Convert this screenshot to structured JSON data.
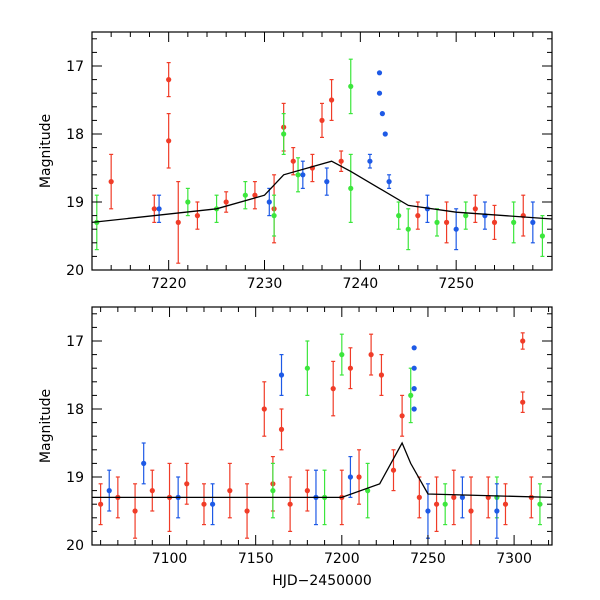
{
  "colors": {
    "red": "#f03c28",
    "green": "#3ce63c",
    "blue": "#1e5ae6",
    "model": "#000000"
  },
  "chart_data": [
    {
      "type": "scatter",
      "panel": "top",
      "title": "",
      "xlabel": "",
      "ylabel": "Magnitude",
      "xlim": [
        7212,
        7260
      ],
      "ylim": [
        20,
        16.5
      ],
      "yticks": [
        17,
        18,
        19,
        20
      ],
      "xticks": [
        7220,
        7230,
        7240,
        7250
      ],
      "series": [
        {
          "name": "red",
          "color": "red",
          "points": [
            {
              "x": 7214,
              "y": 18.7,
              "err": 0.4
            },
            {
              "x": 7218.5,
              "y": 19.1,
              "err": 0.2
            },
            {
              "x": 7220,
              "y": 17.2,
              "err": 0.25
            },
            {
              "x": 7220,
              "y": 18.1,
              "err": 0.4
            },
            {
              "x": 7221,
              "y": 19.3,
              "err": 0.6
            },
            {
              "x": 7223,
              "y": 19.2,
              "err": 0.2
            },
            {
              "x": 7226,
              "y": 19.0,
              "err": 0.15
            },
            {
              "x": 7229,
              "y": 18.9,
              "err": 0.2
            },
            {
              "x": 7231,
              "y": 19.1,
              "err": 0.5
            },
            {
              "x": 7232,
              "y": 17.9,
              "err": 0.35
            },
            {
              "x": 7233,
              "y": 18.4,
              "err": 0.2
            },
            {
              "x": 7235,
              "y": 18.5,
              "err": 0.2
            },
            {
              "x": 7236,
              "y": 17.8,
              "err": 0.25
            },
            {
              "x": 7237,
              "y": 17.5,
              "err": 0.3
            },
            {
              "x": 7238,
              "y": 18.4,
              "err": 0.15
            },
            {
              "x": 7246,
              "y": 19.2,
              "err": 0.2
            },
            {
              "x": 7249,
              "y": 19.3,
              "err": 0.3
            },
            {
              "x": 7252,
              "y": 19.1,
              "err": 0.2
            },
            {
              "x": 7254,
              "y": 19.3,
              "err": 0.25
            },
            {
              "x": 7257,
              "y": 19.2,
              "err": 0.3
            }
          ]
        },
        {
          "name": "green",
          "color": "green",
          "points": [
            {
              "x": 7212.5,
              "y": 19.3,
              "err": 0.4
            },
            {
              "x": 7222,
              "y": 19.0,
              "err": 0.2
            },
            {
              "x": 7225,
              "y": 19.1,
              "err": 0.2
            },
            {
              "x": 7228,
              "y": 18.9,
              "err": 0.2
            },
            {
              "x": 7231,
              "y": 19.2,
              "err": 0.3
            },
            {
              "x": 7232,
              "y": 18.0,
              "err": 0.3
            },
            {
              "x": 7233.5,
              "y": 18.6,
              "err": 0.25
            },
            {
              "x": 7239,
              "y": 17.3,
              "err": 0.4
            },
            {
              "x": 7239,
              "y": 18.8,
              "err": 0.5
            },
            {
              "x": 7244,
              "y": 19.2,
              "err": 0.2
            },
            {
              "x": 7245,
              "y": 19.4,
              "err": 0.3
            },
            {
              "x": 7248,
              "y": 19.3,
              "err": 0.2
            },
            {
              "x": 7251,
              "y": 19.2,
              "err": 0.2
            },
            {
              "x": 7256,
              "y": 19.3,
              "err": 0.3
            },
            {
              "x": 7259,
              "y": 19.5,
              "err": 0.3
            }
          ]
        },
        {
          "name": "blue",
          "color": "blue",
          "points": [
            {
              "x": 7219,
              "y": 19.1,
              "err": 0.2
            },
            {
              "x": 7230.5,
              "y": 19.0,
              "err": 0.2
            },
            {
              "x": 7234,
              "y": 18.6,
              "err": 0.2
            },
            {
              "x": 7236.5,
              "y": 18.7,
              "err": 0.2
            },
            {
              "x": 7241,
              "y": 18.4,
              "err": 0.1
            },
            {
              "x": 7242,
              "y": 17.1,
              "err": 0.02
            },
            {
              "x": 7242,
              "y": 17.4,
              "err": 0.02
            },
            {
              "x": 7242.3,
              "y": 17.7,
              "err": 0.02
            },
            {
              "x": 7242.6,
              "y": 18.0,
              "err": 0.02
            },
            {
              "x": 7243,
              "y": 18.7,
              "err": 0.1
            },
            {
              "x": 7247,
              "y": 19.1,
              "err": 0.2
            },
            {
              "x": 7250,
              "y": 19.4,
              "err": 0.3
            },
            {
              "x": 7253,
              "y": 19.2,
              "err": 0.2
            },
            {
              "x": 7258,
              "y": 19.3,
              "err": 0.3
            }
          ]
        }
      ],
      "model_curve": {
        "x": [
          7212,
          7225,
          7230,
          7232,
          7237,
          7239,
          7242,
          7245,
          7250,
          7260
        ],
        "y": [
          19.3,
          19.1,
          18.9,
          18.6,
          18.4,
          18.55,
          18.8,
          19.05,
          19.15,
          19.25
        ]
      }
    },
    {
      "type": "scatter",
      "panel": "bottom",
      "title": "",
      "xlabel": "HJD−2450000",
      "ylabel": "Magnitude",
      "xlim": [
        7055,
        7322
      ],
      "ylim": [
        20,
        16.5
      ],
      "yticks": [
        17,
        18,
        19,
        20
      ],
      "xticks": [
        7100,
        7150,
        7200,
        7250,
        7300
      ],
      "series": [
        {
          "name": "red",
          "color": "red",
          "points": [
            {
              "x": 7060,
              "y": 19.4,
              "err": 0.3
            },
            {
              "x": 7070,
              "y": 19.3,
              "err": 0.3
            },
            {
              "x": 7080,
              "y": 19.5,
              "err": 0.4
            },
            {
              "x": 7090,
              "y": 19.2,
              "err": 0.3
            },
            {
              "x": 7100,
              "y": 19.3,
              "err": 0.5
            },
            {
              "x": 7110,
              "y": 19.1,
              "err": 0.3
            },
            {
              "x": 7120,
              "y": 19.4,
              "err": 0.3
            },
            {
              "x": 7135,
              "y": 19.2,
              "err": 0.4
            },
            {
              "x": 7145,
              "y": 19.5,
              "err": 0.4
            },
            {
              "x": 7155,
              "y": 18.0,
              "err": 0.4
            },
            {
              "x": 7160,
              "y": 19.1,
              "err": 0.4
            },
            {
              "x": 7165,
              "y": 18.3,
              "err": 0.3
            },
            {
              "x": 7170,
              "y": 19.4,
              "err": 0.4
            },
            {
              "x": 7180,
              "y": 19.2,
              "err": 0.3
            },
            {
              "x": 7195,
              "y": 17.7,
              "err": 0.4
            },
            {
              "x": 7200,
              "y": 19.3,
              "err": 0.4
            },
            {
              "x": 7205,
              "y": 17.4,
              "err": 0.3
            },
            {
              "x": 7210,
              "y": 19.0,
              "err": 0.4
            },
            {
              "x": 7217,
              "y": 17.2,
              "err": 0.3
            },
            {
              "x": 7223,
              "y": 17.5,
              "err": 0.3
            },
            {
              "x": 7230,
              "y": 18.9,
              "err": 0.3
            },
            {
              "x": 7235,
              "y": 18.1,
              "err": 0.3
            },
            {
              "x": 7245,
              "y": 19.3,
              "err": 0.3
            },
            {
              "x": 7255,
              "y": 19.4,
              "err": 0.4
            },
            {
              "x": 7265,
              "y": 19.3,
              "err": 0.4
            },
            {
              "x": 7275,
              "y": 19.5,
              "err": 0.5
            },
            {
              "x": 7285,
              "y": 19.3,
              "err": 0.3
            },
            {
              "x": 7295,
              "y": 19.4,
              "err": 0.3
            },
            {
              "x": 7305,
              "y": 17.0,
              "err": 0.12
            },
            {
              "x": 7305,
              "y": 17.9,
              "err": 0.15
            },
            {
              "x": 7310,
              "y": 19.3,
              "err": 0.3
            }
          ]
        },
        {
          "name": "green",
          "color": "green",
          "points": [
            {
              "x": 7160,
              "y": 19.2,
              "err": 0.4
            },
            {
              "x": 7180,
              "y": 17.4,
              "err": 0.4
            },
            {
              "x": 7190,
              "y": 19.3,
              "err": 0.4
            },
            {
              "x": 7200,
              "y": 17.2,
              "err": 0.3
            },
            {
              "x": 7215,
              "y": 19.2,
              "err": 0.4
            },
            {
              "x": 7240,
              "y": 17.8,
              "err": 0.4
            },
            {
              "x": 7260,
              "y": 19.4,
              "err": 0.3
            },
            {
              "x": 7290,
              "y": 19.3,
              "err": 0.3
            },
            {
              "x": 7315,
              "y": 19.4,
              "err": 0.3
            }
          ]
        },
        {
          "name": "blue",
          "color": "blue",
          "points": [
            {
              "x": 7065,
              "y": 19.2,
              "err": 0.3
            },
            {
              "x": 7085,
              "y": 18.8,
              "err": 0.3
            },
            {
              "x": 7105,
              "y": 19.3,
              "err": 0.3
            },
            {
              "x": 7125,
              "y": 19.4,
              "err": 0.3
            },
            {
              "x": 7165,
              "y": 17.5,
              "err": 0.3
            },
            {
              "x": 7185,
              "y": 19.3,
              "err": 0.4
            },
            {
              "x": 7205,
              "y": 19.0,
              "err": 0.3
            },
            {
              "x": 7242,
              "y": 17.1,
              "err": 0.02
            },
            {
              "x": 7242,
              "y": 17.4,
              "err": 0.02
            },
            {
              "x": 7242,
              "y": 17.7,
              "err": 0.02
            },
            {
              "x": 7242,
              "y": 18.0,
              "err": 0.02
            },
            {
              "x": 7250,
              "y": 19.5,
              "err": 0.4
            },
            {
              "x": 7270,
              "y": 19.3,
              "err": 0.3
            },
            {
              "x": 7290,
              "y": 19.5,
              "err": 0.4
            }
          ]
        }
      ],
      "model_curve": {
        "x": [
          7055,
          7200,
          7222,
          7235,
          7240,
          7250,
          7322
        ],
        "y": [
          19.3,
          19.3,
          19.1,
          18.5,
          18.8,
          19.25,
          19.3
        ]
      }
    }
  ]
}
